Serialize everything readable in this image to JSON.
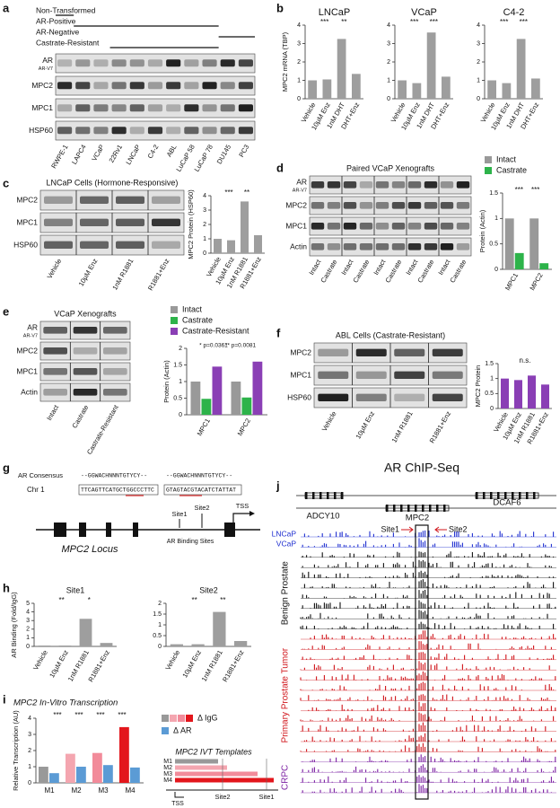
{
  "panel_labels": [
    "a",
    "b",
    "c",
    "d",
    "e",
    "f",
    "g",
    "h",
    "i",
    "j"
  ],
  "blots": [
    {
      "headers": [
        "Non-Transformed",
        "AR-Positive",
        "AR-Negative",
        "Castrate-Resistant"
      ],
      "rows": [
        "AR",
        "MPC2",
        "MPC1",
        "HSP60"
      ],
      "sub_label": "AR-V7",
      "lanes": [
        "RWPE-1",
        "LAPC4",
        "VCaP",
        "22Rv1",
        "LNCaP",
        "C4-2",
        "ABL",
        "LuCaP 58",
        "LuCaP 78",
        "DU145",
        "PC3"
      ]
    },
    {
      "title": "LNCaP Cells (Hormone-Responsive)",
      "rows": [
        "MPC2",
        "MPC1",
        "HSP60"
      ],
      "lanes": [
        "Vehicle",
        "10µM Enz",
        "1nM R1881",
        "R1881+Enz"
      ]
    },
    {
      "title": "Paired VCaP Xenografts",
      "rows": [
        "AR",
        "MPC2",
        "MPC1",
        "Actin"
      ],
      "sub_label": "AR-V7",
      "lanes": [
        "Intact",
        "Castrate",
        "Intact",
        "Castrate",
        "Intact",
        "Castrate",
        "Intact",
        "Castrate",
        "Intact",
        "Castrate"
      ]
    },
    {
      "title": "VCaP Xenografts",
      "rows": [
        "AR",
        "MPC2",
        "MPC1",
        "Actin"
      ],
      "sub_label": "AR-V7",
      "lanes": [
        "Intact",
        "Castrate",
        "Castrate-Resistant"
      ]
    },
    {
      "title": "ABL Cells (Castrate-Resistant)",
      "rows": [
        "MPC2",
        "MPC1",
        "HSP60"
      ],
      "lanes": [
        "Vehicle",
        "10µM Enz",
        "1nM R1881",
        "R1881+Enz"
      ]
    }
  ],
  "locus": {
    "consensus_label": "AR Consensus",
    "chr_label": "Chr 1",
    "consensus": [
      "--GGWACHNNNTGTYCY--",
      "--GGWACHNNNTGTYCY--"
    ],
    "sequence": [
      "TTCAGTTCATGCTGGCCCTTC",
      "GTAGTACGTACATCTATTAT"
    ],
    "sites": [
      "Site1",
      "Site2"
    ],
    "tss": "TSS",
    "binding": "AR Binding Sites",
    "name": "MPC2 Locus"
  },
  "ivt": {
    "title": "MPC2 In-Vitro Transcription",
    "templates_title": "MPC2 IVT Templates",
    "templates": [
      "M1",
      "M2",
      "M3",
      "M4"
    ],
    "tss": "TSS",
    "sites": [
      "Site2",
      "Site1"
    ]
  },
  "chip": {
    "title": "AR ChIP-Seq",
    "genes": [
      "ADCY10",
      "MPC2",
      "DCAF6"
    ],
    "cells": [
      "LNCaP",
      "VCaP"
    ],
    "sites": [
      "Site1",
      "Site2"
    ],
    "groups": [
      "Benign Prostate",
      "Primary Prostate Tumor",
      "CRPC"
    ]
  },
  "chart_data": [
    {
      "type": "bar",
      "title": "LNCaP",
      "y_label": "MPC2 mRNA (TBP)",
      "categories": [
        "Vehicle",
        "10µM Enz",
        "1nM DHT",
        "DHT+Enz"
      ],
      "values": [
        1,
        1.05,
        3.25,
        1.35
      ],
      "color": "#9e9e9e",
      "ylim": [
        0,
        4
      ],
      "yticks": [
        0,
        1,
        2,
        3,
        4
      ],
      "annotations": [
        "***",
        "**"
      ]
    },
    {
      "type": "bar",
      "title": "VCaP",
      "categories": [
        "Vehicle",
        "10µM Enz",
        "1nM DHT",
        "DHT+Enz"
      ],
      "values": [
        1,
        0.85,
        3.6,
        1.2
      ],
      "color": "#9e9e9e",
      "ylim": [
        0,
        4
      ],
      "yticks": [
        0,
        1,
        2,
        3,
        4
      ],
      "annotations": [
        "***",
        "***"
      ]
    },
    {
      "type": "bar",
      "title": "C4-2",
      "categories": [
        "Vehicle",
        "10µM Enz",
        "1nM DHT",
        "DHT+Enz"
      ],
      "values": [
        1,
        0.85,
        3.25,
        1.1
      ],
      "color": "#9e9e9e",
      "ylim": [
        0,
        4
      ],
      "yticks": [
        0,
        1,
        2,
        3,
        4
      ],
      "annotations": [
        "***",
        "***"
      ]
    },
    {
      "type": "bar",
      "y_label": "MPC2 Protein (HSP60)",
      "categories": [
        "Vehicle",
        "10µM Enz",
        "1nM R1881",
        "R1881+Enz"
      ],
      "values": [
        1,
        0.9,
        3.6,
        1.25
      ],
      "color": "#9e9e9e",
      "ylim": [
        0,
        4
      ],
      "yticks": [
        0,
        1,
        2,
        3,
        4
      ],
      "annotations": [
        "***",
        "**"
      ]
    },
    {
      "type": "bar",
      "y_label": "Protein (Actin)",
      "categories": [
        "MPC1",
        "MPC2"
      ],
      "series": [
        {
          "name": "Intact",
          "color": "#999999",
          "values": [
            1.0,
            1.0
          ]
        },
        {
          "name": "Castrate",
          "color": "#2db34a",
          "values": [
            0.32,
            0.12
          ]
        }
      ],
      "ylim": [
        0,
        1.5
      ],
      "yticks": [
        0,
        0.5,
        1,
        1.5
      ],
      "annotations": [
        "***",
        "***"
      ]
    },
    {
      "type": "bar",
      "y_label": "Protein (Actin)",
      "categories": [
        "MPC1",
        "MPC2"
      ],
      "series": [
        {
          "name": "Intact",
          "color": "#999999",
          "values": [
            1.0,
            1.0
          ]
        },
        {
          "name": "Castrate",
          "color": "#2db34a",
          "values": [
            0.48,
            0.52
          ]
        },
        {
          "name": "Castrate-Resistant",
          "color": "#8a3fb5",
          "values": [
            1.45,
            1.6
          ]
        }
      ],
      "ylim": [
        0,
        2
      ],
      "yticks": [
        0,
        0.5,
        1,
        1.5,
        2
      ],
      "annotations": [
        "* p=0.0361",
        "** p=0.0081"
      ]
    },
    {
      "type": "bar",
      "y_label": "MPC2 Protein",
      "categories": [
        "Vehicle",
        "10µM Enz",
        "1nM R1881",
        "R1881+Enz"
      ],
      "values": [
        1,
        0.95,
        1.1,
        0.8
      ],
      "color": "#8a3fb5",
      "ylim": [
        0,
        1.5
      ],
      "yticks": [
        0,
        0.5,
        1,
        1.5
      ],
      "annotations": [
        "n.s."
      ]
    },
    {
      "type": "bar",
      "title": "Site1",
      "y_label": "AR Binding (Fold/IgG)",
      "categories": [
        "Vehicle",
        "10µM Enz",
        "1nM R1881",
        "R1881+Enz"
      ],
      "values": [
        0.1,
        0.1,
        3.2,
        0.4
      ],
      "color": "#9e9e9e",
      "ylim": [
        0,
        5
      ],
      "yticks": [
        0,
        1,
        2,
        3,
        4,
        5
      ],
      "annotations": [
        "**",
        "*"
      ]
    },
    {
      "type": "bar",
      "title": "Site2",
      "categories": [
        "Vehicle",
        "10µM Enz",
        "1nM R1881",
        "R1881+Enz"
      ],
      "values": [
        0.1,
        0.1,
        1.6,
        0.25
      ],
      "color": "#9e9e9e",
      "ylim": [
        0,
        2
      ],
      "yticks": [
        0,
        0.5,
        1,
        1.5,
        2
      ],
      "annotations": [
        "**",
        "**"
      ]
    },
    {
      "type": "bar",
      "y_label": "Relative Transcription (AU)",
      "categories": [
        "M1",
        "M2",
        "M3",
        "M4"
      ],
      "series": [
        {
          "name": "Δ IgG",
          "colors": [
            "#999999",
            "#f4a6b0",
            "#f28b9a",
            "#e3161c"
          ],
          "values": [
            1.0,
            1.8,
            1.85,
            3.45
          ]
        },
        {
          "name": "Δ AR",
          "color": "#5b9bd5",
          "values": [
            0.6,
            1.0,
            1.1,
            0.95
          ]
        }
      ],
      "ylim": [
        0,
        4
      ],
      "yticks": [
        0,
        1,
        2,
        3,
        4
      ],
      "annotations": [
        "***",
        "***",
        "***",
        "***"
      ]
    }
  ]
}
